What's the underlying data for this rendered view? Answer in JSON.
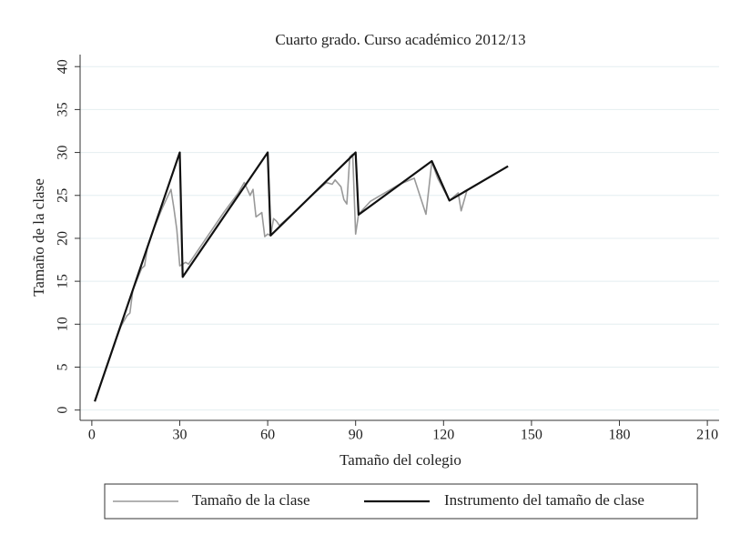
{
  "chart_data": {
    "type": "line",
    "title": "Cuarto grado. Curso académico 2012/13",
    "x_label": "Tamaño del colegio",
    "y_label": "Tamaño de la clase",
    "xlim": [
      -4,
      214
    ],
    "ylim": [
      -1.2,
      41.4
    ],
    "xticks": [
      0,
      30,
      60,
      90,
      120,
      150,
      180,
      210
    ],
    "yticks": [
      0,
      5,
      10,
      15,
      20,
      25,
      30,
      35,
      40
    ],
    "grid": true,
    "legend": "bottom",
    "series": [
      {
        "name": "Tamaño de la clase",
        "color": "#999999",
        "x": [
          1,
          5,
          8,
          10,
          12,
          13,
          14,
          17,
          18,
          19,
          21,
          24,
          27,
          28,
          29,
          30,
          31,
          32,
          33,
          34,
          40,
          45,
          50,
          52,
          54,
          55,
          56,
          58,
          59,
          60,
          61,
          62,
          63,
          64,
          70,
          75,
          80,
          82,
          83,
          85,
          86,
          87,
          88,
          89,
          90,
          91,
          95,
          100,
          105,
          110,
          114,
          116,
          118,
          122,
          125,
          126,
          128
        ],
        "values": [
          1,
          5,
          8,
          9.8,
          11,
          11.3,
          14,
          16.5,
          16.8,
          19,
          21,
          23.5,
          25.7,
          23.5,
          21,
          16.8,
          17,
          17.2,
          17,
          17.5,
          20.5,
          23,
          25.3,
          26.5,
          25,
          25.7,
          22.5,
          23,
          20.2,
          20.5,
          20.3,
          22.3,
          22,
          21.5,
          23.3,
          25,
          26.5,
          26.3,
          26.8,
          26,
          24.5,
          24,
          29.5,
          29.8,
          20.5,
          22.8,
          24.3,
          25.3,
          26.3,
          27,
          22.8,
          28.9,
          27,
          24.4,
          25.3,
          23.2,
          25.6
        ]
      },
      {
        "name": "Instrumento del tamaño de clase",
        "color": "#111111",
        "x": [
          1,
          30,
          31,
          60,
          61,
          90,
          91,
          116,
          122,
          142
        ],
        "values": [
          1,
          30,
          15.5,
          30,
          20.33,
          30,
          22.75,
          29,
          24.4,
          28.4
        ]
      }
    ]
  }
}
